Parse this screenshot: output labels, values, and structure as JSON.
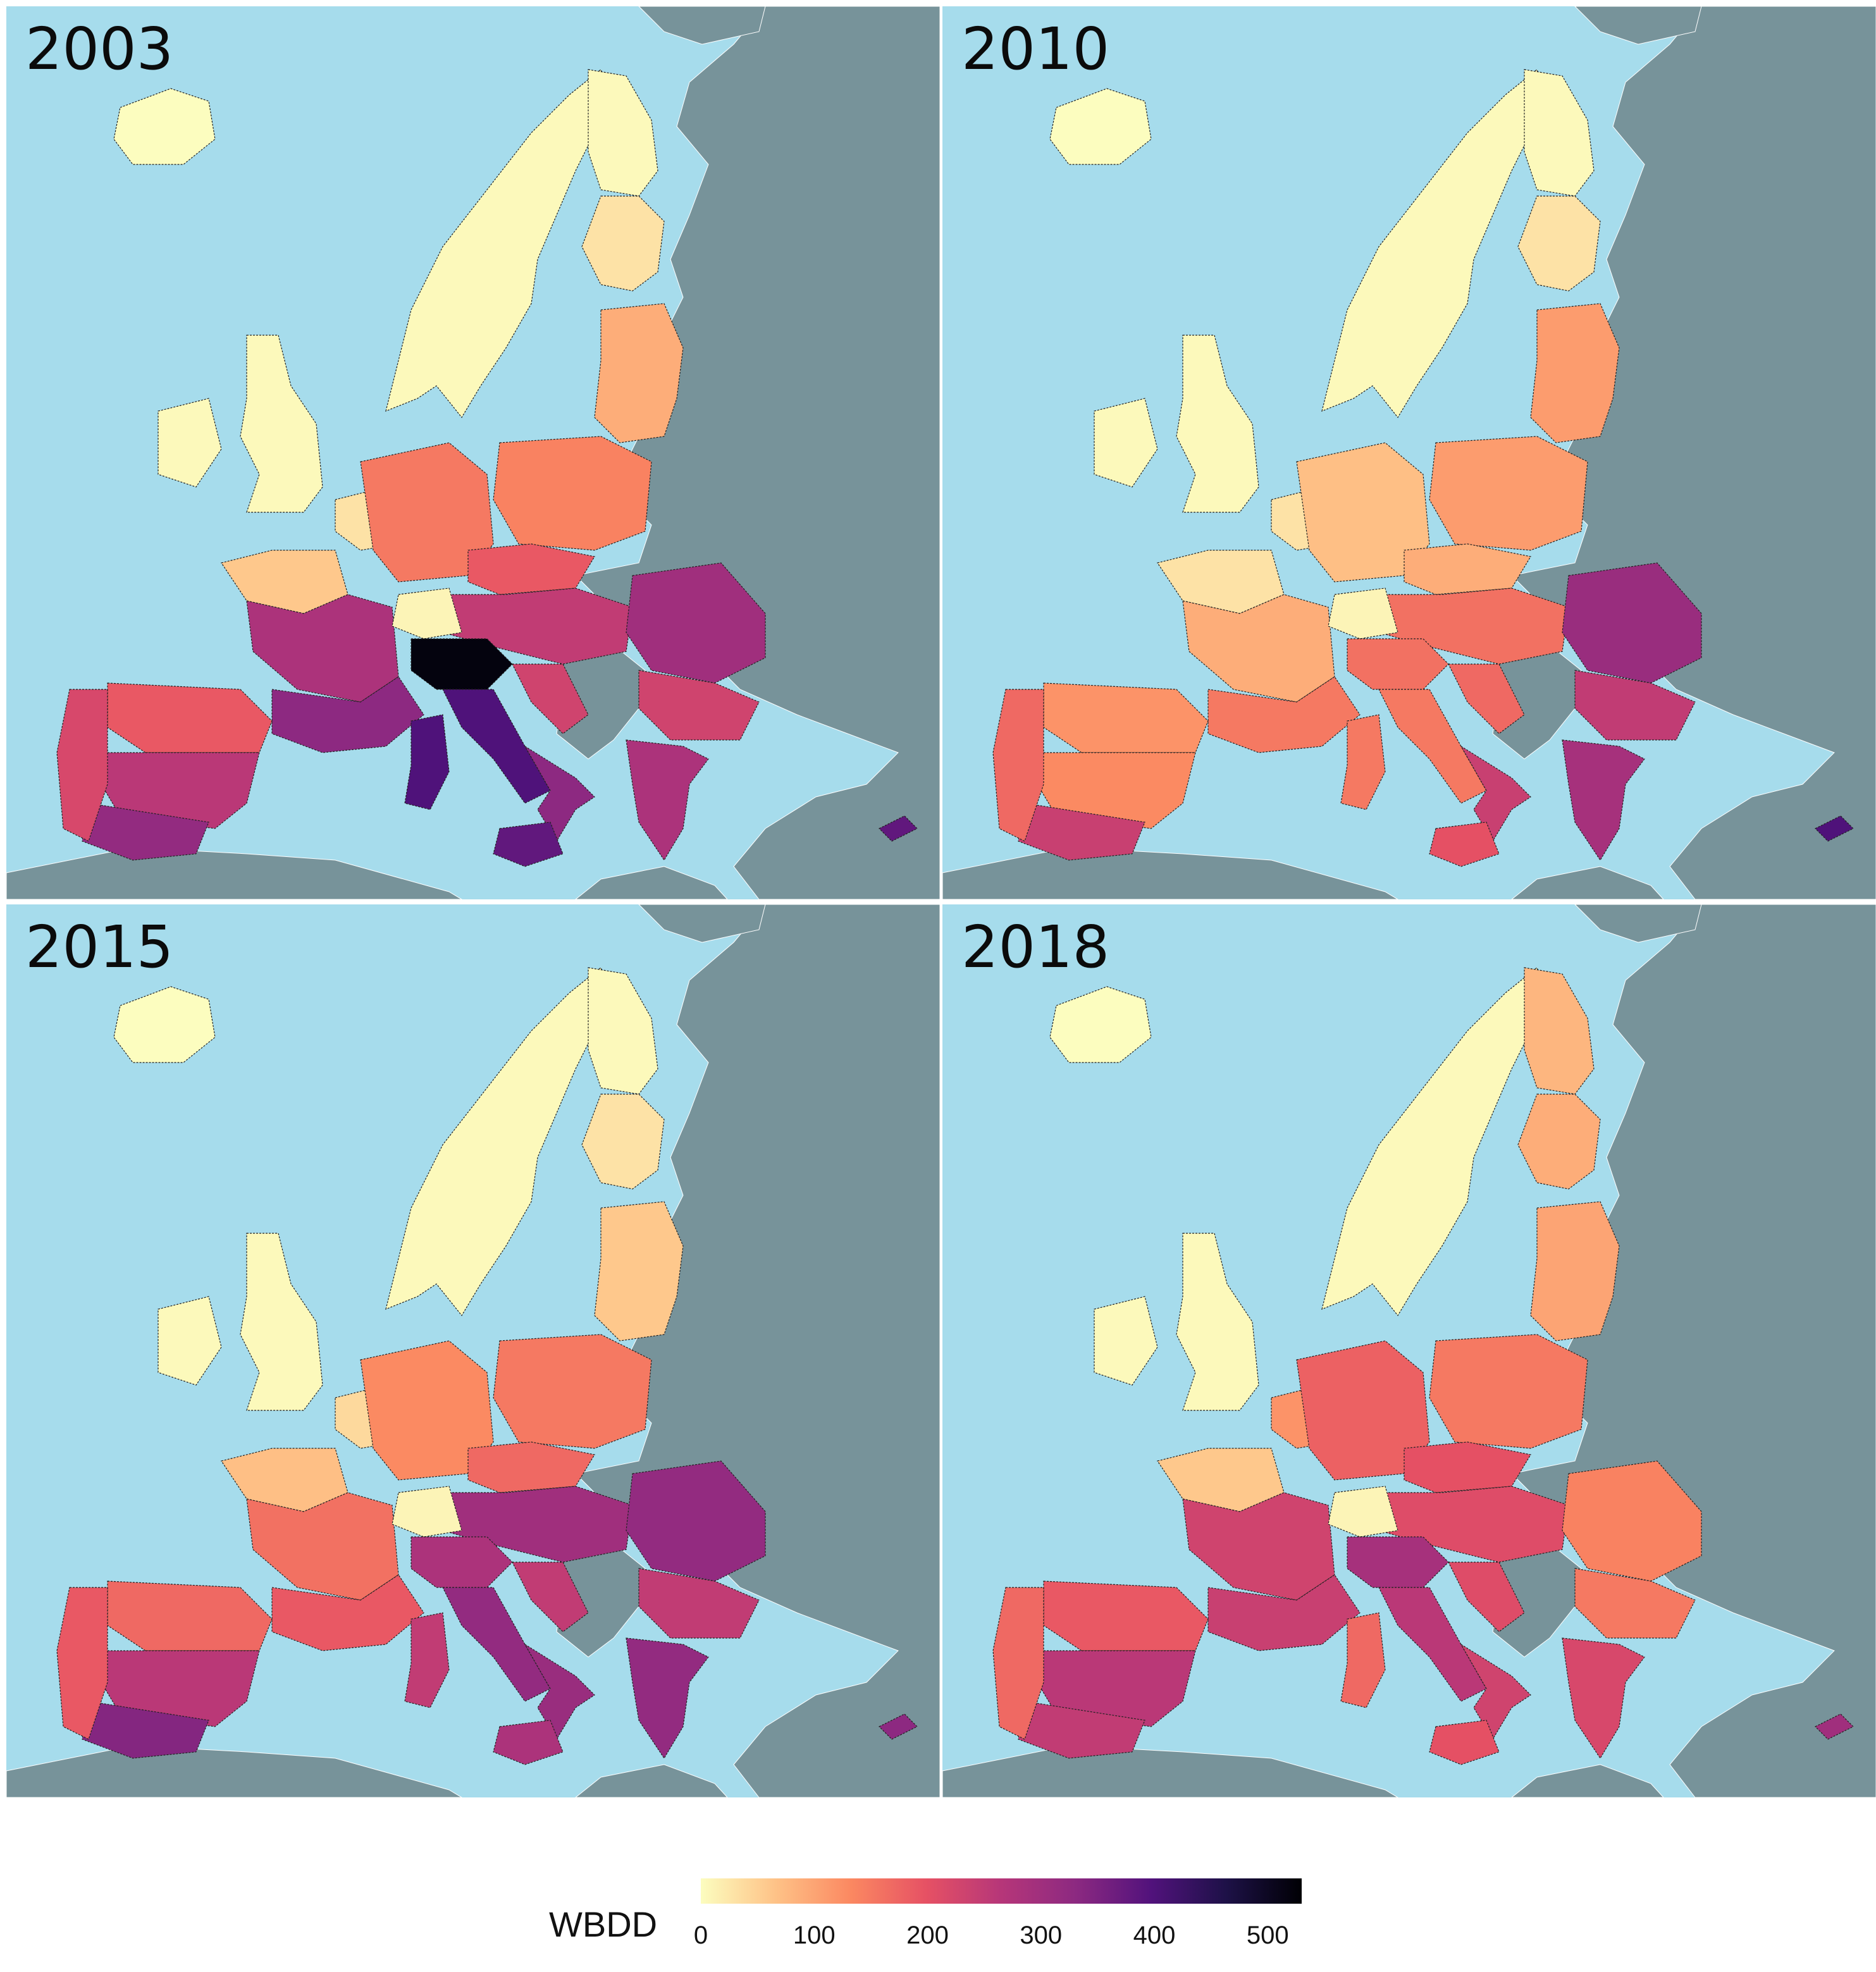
{
  "panels": [
    {
      "year": "2003",
      "regions": {
        "iceland": 0,
        "scandinavia": 5,
        "finland_north": 5,
        "finland_south": 30,
        "baltics": 90,
        "british_isles": 5,
        "low_countries": 30,
        "france_north": 60,
        "france_center": 280,
        "france_south": 330,
        "germany": 150,
        "poland": 140,
        "czechia": 190,
        "austria_hungary": 250,
        "alps": 10,
        "po_valley": 520,
        "italy_center": 400,
        "italy_south": 330,
        "sicily": 380,
        "sardinia": 400,
        "croatia": 230,
        "romania": 300,
        "bulgaria": 230,
        "greece": 280,
        "spain_north": 190,
        "spain_center": 260,
        "spain_south": 320,
        "portugal": 220,
        "cyprus": 380
      }
    },
    {
      "year": "2010",
      "regions": {
        "iceland": 0,
        "scandinavia": 5,
        "finland_north": 5,
        "finland_south": 30,
        "baltics": 110,
        "british_isles": 5,
        "low_countries": 30,
        "france_north": 30,
        "france_center": 90,
        "france_south": 150,
        "germany": 70,
        "poland": 110,
        "czechia": 90,
        "austria_hungary": 160,
        "alps": 10,
        "po_valley": 160,
        "italy_center": 150,
        "italy_south": 240,
        "sicily": 200,
        "sardinia": 150,
        "croatia": 170,
        "romania": 310,
        "bulgaria": 250,
        "greece": 290,
        "spain_north": 120,
        "spain_center": 130,
        "spain_south": 240,
        "portugal": 170,
        "cyprus": 400
      }
    },
    {
      "year": "2015",
      "regions": {
        "iceland": 0,
        "scandinavia": 5,
        "finland_north": 5,
        "finland_south": 30,
        "baltics": 60,
        "british_isles": 5,
        "low_countries": 40,
        "france_north": 70,
        "france_center": 160,
        "france_south": 190,
        "germany": 130,
        "poland": 150,
        "czechia": 170,
        "austria_hungary": 300,
        "alps": 10,
        "po_valley": 280,
        "italy_center": 320,
        "italy_south": 310,
        "sicily": 280,
        "sardinia": 250,
        "croatia": 250,
        "romania": 320,
        "bulgaria": 250,
        "greece": 320,
        "spain_north": 170,
        "spain_center": 260,
        "spain_south": 340,
        "portugal": 190,
        "cyprus": 330
      }
    },
    {
      "year": "2018",
      "regions": {
        "iceland": 0,
        "scandinavia": 5,
        "finland_north": 80,
        "finland_south": 90,
        "baltics": 100,
        "british_isles": 5,
        "low_countries": 120,
        "france_north": 60,
        "france_center": 230,
        "france_south": 240,
        "germany": 180,
        "poland": 150,
        "czechia": 200,
        "austria_hungary": 210,
        "alps": 10,
        "po_valley": 290,
        "italy_center": 260,
        "italy_south": 230,
        "sicily": 200,
        "sardinia": 170,
        "croatia": 210,
        "romania": 140,
        "bulgaria": 150,
        "greece": 220,
        "spain_north": 190,
        "spain_center": 260,
        "spain_south": 250,
        "portugal": 170,
        "cyprus": 300
      }
    }
  ],
  "legend": {
    "title": "WBDD",
    "ticks": [
      "0",
      "100",
      "200",
      "300",
      "400",
      "500"
    ],
    "min": 0,
    "max": 530
  },
  "colors": {
    "sea": "#a6dcec",
    "non_eu_land": "#77939a",
    "scale": [
      "#fcfdbf",
      "#fec287",
      "#fb8861",
      "#e65164",
      "#b63679",
      "#8c2981",
      "#51127c",
      "#1d1147",
      "#000004"
    ]
  }
}
